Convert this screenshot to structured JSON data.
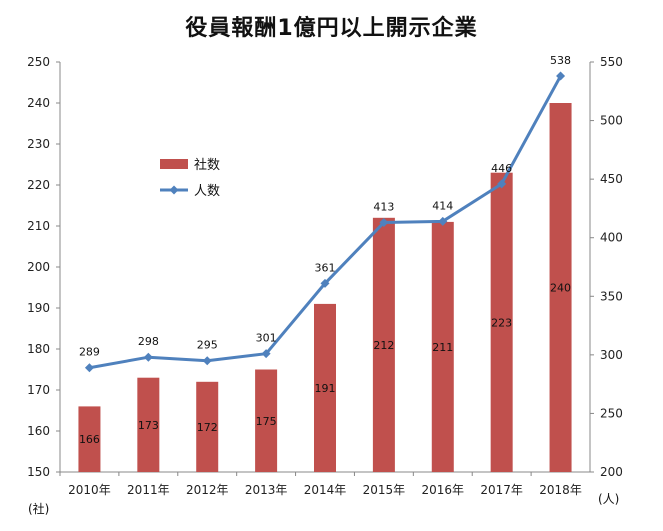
{
  "chart_data": {
    "type": "bar+line",
    "title": "役員報酬1億円以上開示企業",
    "categories": [
      "2010年",
      "2011年",
      "2012年",
      "2013年",
      "2014年",
      "2015年",
      "2016年",
      "2017年",
      "2018年"
    ],
    "series": [
      {
        "name": "社数",
        "type": "bar",
        "axis": "left",
        "color": "#C0504D",
        "values": [
          166,
          173,
          172,
          175,
          191,
          212,
          211,
          223,
          240
        ]
      },
      {
        "name": "人数",
        "type": "line",
        "axis": "right",
        "color": "#4F81BD",
        "values": [
          289,
          298,
          295,
          301,
          361,
          413,
          414,
          446,
          538
        ]
      }
    ],
    "y_left": {
      "label": "(社)",
      "min": 150,
      "max": 250,
      "step": 10
    },
    "y_right": {
      "label": "(人)",
      "min": 200,
      "max": 550,
      "step": 50
    },
    "legend_position": "upper-left inside plot",
    "grid": false
  }
}
